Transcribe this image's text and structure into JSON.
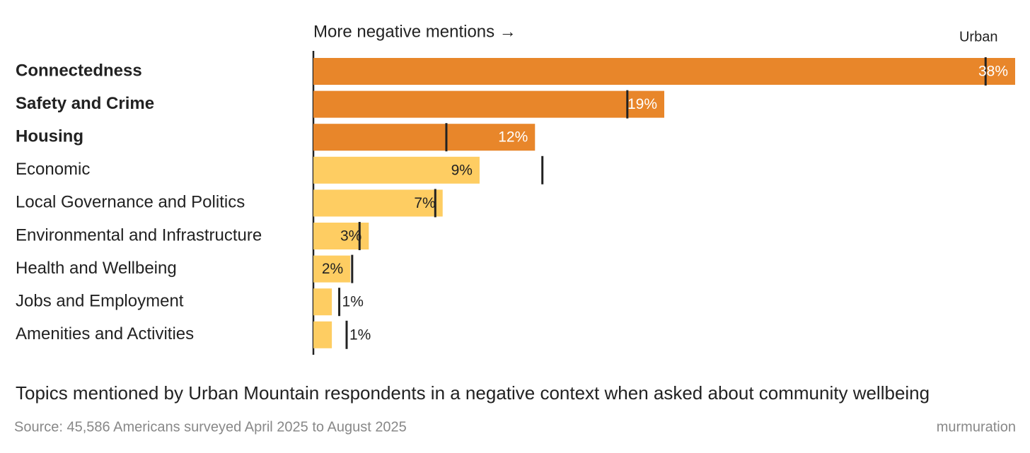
{
  "chart_data": {
    "type": "bar",
    "orientation": "horizontal",
    "annotation": "More negative mentions →",
    "title": "Topics mentioned by Urban Mountain respondents in a negative context when asked about community wellbeing",
    "source": "Source: 45,586 Americans surveyed April 2025 to August 2025",
    "brand": "murmuration",
    "categories": [
      "Connectedness",
      "Safety and Crime",
      "Housing",
      "Economic",
      "Local Governance and Politics",
      "Environmental and Infrastructure",
      "Health and Wellbeing",
      "Jobs and Employment",
      "Amenities and Activities"
    ],
    "values": [
      38,
      19,
      12,
      9,
      7,
      3,
      2,
      1,
      1
    ],
    "value_labels": [
      "38%",
      "19%",
      "12%",
      "9%",
      "7%",
      "3%",
      "2%",
      "1%",
      "1%"
    ],
    "colors": [
      "#e8862a",
      "#e8862a",
      "#e8862a",
      "#fecd62",
      "#fecd62",
      "#fecd62",
      "#fecd62",
      "#fecd62",
      "#fecd62"
    ],
    "markers": {
      "name": "Urban",
      "color": "#222222",
      "values": [
        36.4,
        17,
        7.2,
        12.4,
        6.6,
        2.5,
        2.1,
        1.4,
        1.8
      ]
    },
    "xlim": [
      0,
      38
    ]
  }
}
